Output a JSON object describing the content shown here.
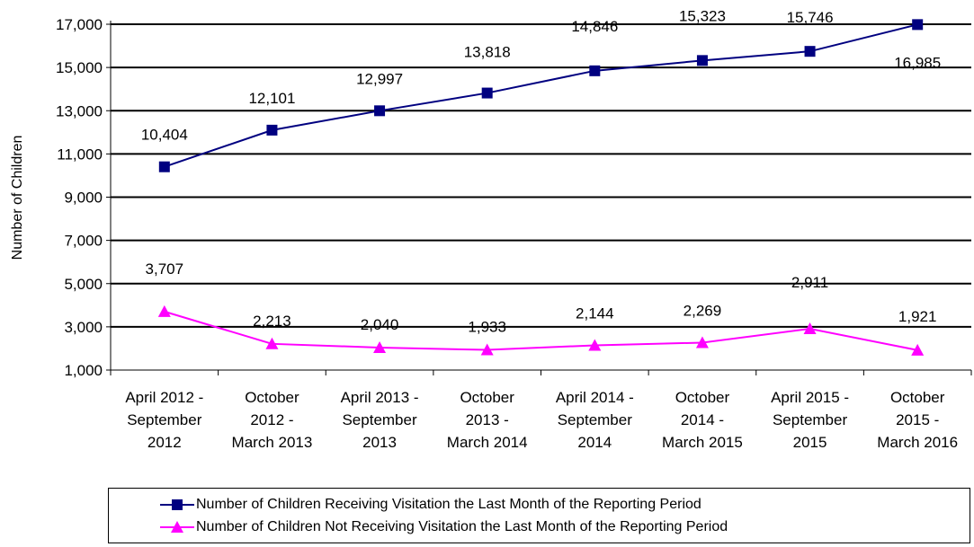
{
  "chart_data": {
    "type": "line",
    "ylabel": "Number of Children",
    "xlabel": "",
    "ylim": [
      1000,
      17000
    ],
    "yticks": [
      1000,
      3000,
      5000,
      7000,
      9000,
      11000,
      13000,
      15000,
      17000
    ],
    "ytick_labels": [
      "1,000",
      "3,000",
      "5,000",
      "7,000",
      "9,000",
      "11,000",
      "13,000",
      "15,000",
      "17,000"
    ],
    "grid": "horizontal",
    "legend_position": "bottom",
    "categories": [
      [
        "April 2012 -",
        "September",
        "2012"
      ],
      [
        "October",
        "2012 -",
        "March 2013"
      ],
      [
        "April 2013 -",
        "September",
        "2013"
      ],
      [
        "October",
        "2013 -",
        "March 2014"
      ],
      [
        "April 2014 -",
        "September",
        "2014"
      ],
      [
        "October",
        "2014 -",
        "March 2015"
      ],
      [
        "April 2015 -",
        "September",
        "2015"
      ],
      [
        "October",
        "2015 -",
        "March 2016"
      ]
    ],
    "series": [
      {
        "name": "Number of Children Receiving Visitation the Last Month of the Reporting Period",
        "color": "#000080",
        "marker": "square",
        "values": [
          10404,
          12101,
          12997,
          13818,
          14846,
          15323,
          15746,
          16985
        ],
        "labels": [
          "10,404",
          "12,101",
          "12,997",
          "13,818",
          "14,846",
          "15,323",
          "15,746",
          "16,985"
        ]
      },
      {
        "name": "Number of Children Not Receiving Visitation the Last Month of the Reporting Period",
        "color": "#ff00ff",
        "marker": "triangle",
        "values": [
          3707,
          2213,
          2040,
          1933,
          2144,
          2269,
          2911,
          1921
        ],
        "labels": [
          "3,707",
          "2,213",
          "2,040",
          "1,933",
          "2,144",
          "2,269",
          "2,911",
          "1,921"
        ]
      }
    ]
  }
}
